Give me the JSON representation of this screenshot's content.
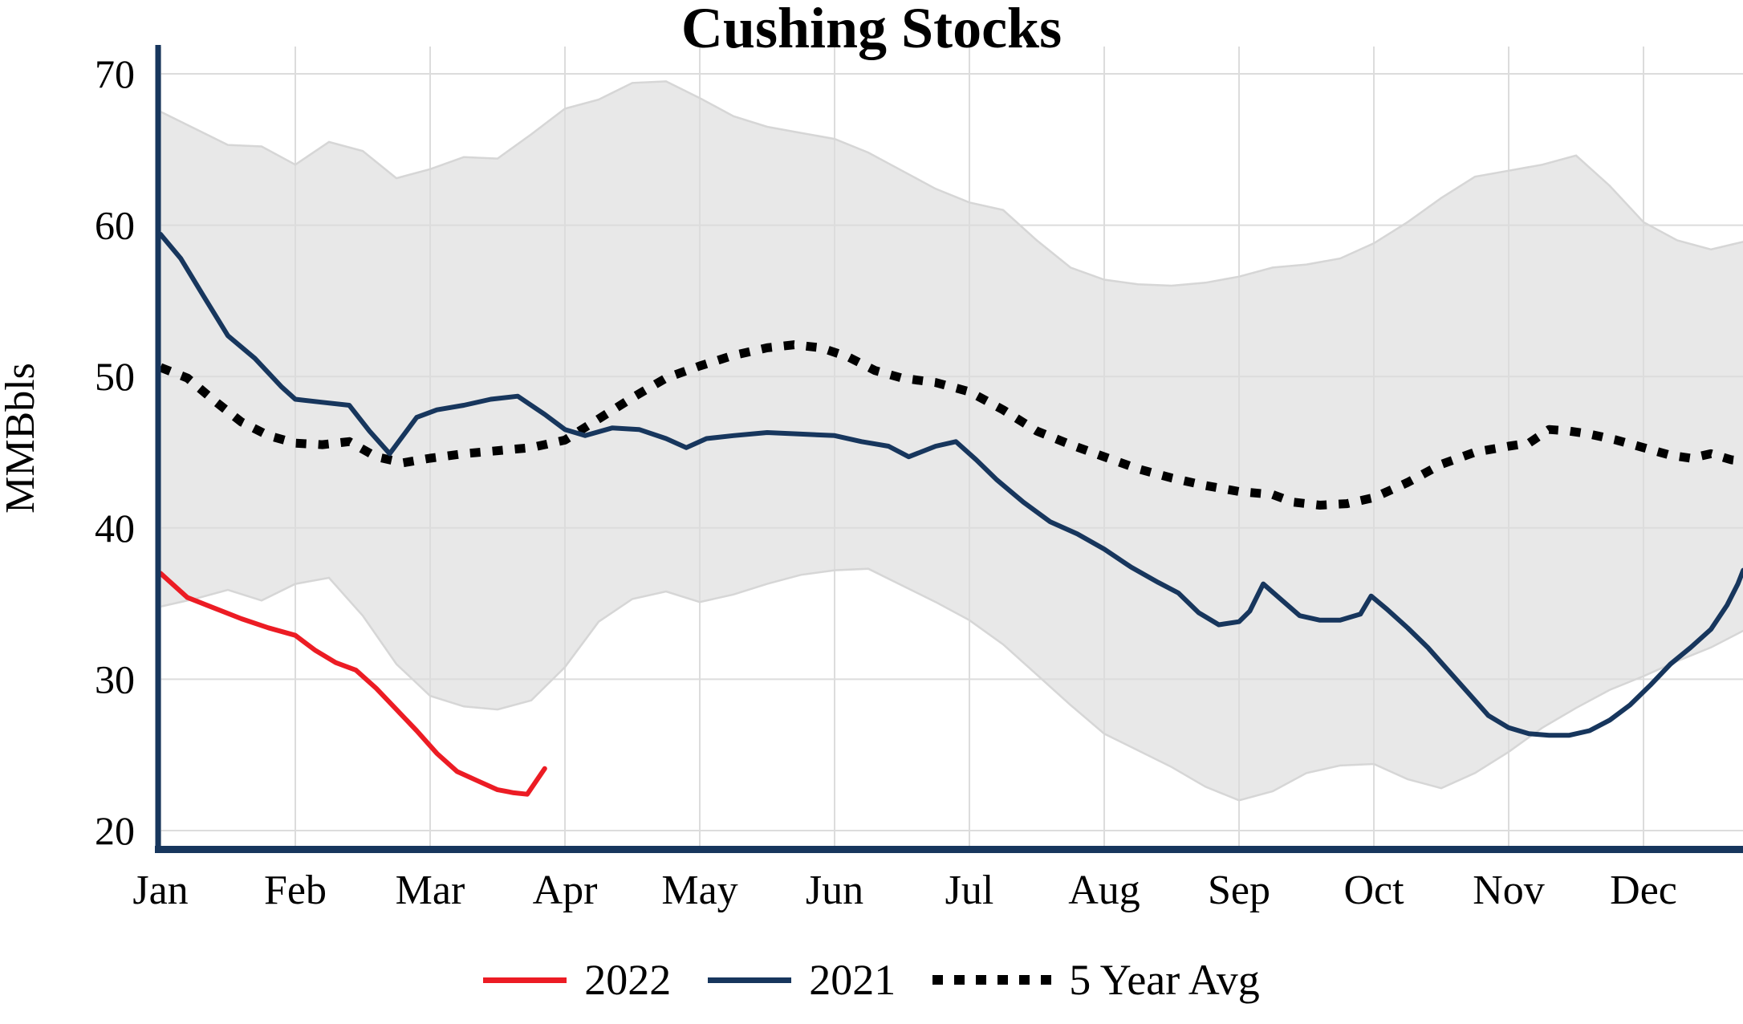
{
  "title": "Cushing Stocks",
  "colors": {
    "axis": "#17365d",
    "grid": "#dcdcdc",
    "background": "#ffffff",
    "text": "#000000"
  },
  "chart_data": {
    "type": "line",
    "title": "Cushing Stocks",
    "xlabel": "",
    "ylabel": "MMBbls",
    "ylim": [
      20,
      70
    ],
    "yticks": [
      20,
      30,
      40,
      50,
      60,
      70
    ],
    "xtick_labels": [
      "Jan",
      "Feb",
      "Mar",
      "Apr",
      "May",
      "Jun",
      "Jul",
      "Aug",
      "Sep",
      "Oct",
      "Nov",
      "Dec"
    ],
    "x_unit": "months, 0 = Jan",
    "grid": true,
    "legend_position": "bottom",
    "band": {
      "color": "#e8e8e8",
      "edge_color": "#d6d6d6",
      "points_x": [
        0,
        0.25,
        0.5,
        0.75,
        1,
        1.25,
        1.5,
        1.75,
        2,
        2.25,
        2.5,
        2.75,
        3,
        3.25,
        3.5,
        3.75,
        4,
        4.25,
        4.5,
        4.75,
        5,
        5.25,
        5.5,
        5.75,
        6,
        6.25,
        6.5,
        6.75,
        7,
        7.25,
        7.5,
        7.75,
        8,
        8.25,
        8.5,
        8.75,
        9,
        9.25,
        9.5,
        9.75,
        10,
        10.25,
        10.5,
        10.75,
        11,
        11.25,
        11.5,
        11.74
      ],
      "upper": [
        67.5,
        66.4,
        65.3,
        65.2,
        64.0,
        65.5,
        64.9,
        63.1,
        63.7,
        64.5,
        64.4,
        66.0,
        67.7,
        68.3,
        69.4,
        69.5,
        68.4,
        67.2,
        66.5,
        66.1,
        65.7,
        64.8,
        63.6,
        62.4,
        61.5,
        61.0,
        59.0,
        57.2,
        56.4,
        56.1,
        56.0,
        56.2,
        56.6,
        57.2,
        57.4,
        57.8,
        58.8,
        60.2,
        61.8,
        63.2,
        63.6,
        64.0,
        64.6,
        62.6,
        60.2,
        59.0,
        58.4,
        58.9
      ],
      "lower": [
        34.8,
        35.3,
        35.9,
        35.2,
        36.3,
        36.7,
        34.2,
        31.0,
        28.9,
        28.2,
        28.0,
        28.6,
        30.8,
        33.8,
        35.3,
        35.8,
        35.1,
        35.6,
        36.3,
        36.9,
        37.2,
        37.3,
        36.2,
        35.1,
        33.9,
        32.3,
        30.3,
        28.3,
        26.4,
        25.3,
        24.2,
        22.9,
        22.0,
        22.6,
        23.8,
        24.3,
        24.4,
        23.4,
        22.8,
        23.8,
        25.2,
        26.8,
        28.1,
        29.3,
        30.2,
        31.2,
        32.1,
        33.2
      ]
    },
    "series": [
      {
        "name": "2022",
        "color": "#ec1c24",
        "dash": "solid",
        "width": 6,
        "points": [
          [
            0,
            37.0
          ],
          [
            0.2,
            35.4
          ],
          [
            0.4,
            34.7
          ],
          [
            0.6,
            34.0
          ],
          [
            0.8,
            33.4
          ],
          [
            1,
            32.9
          ],
          [
            1.15,
            31.9
          ],
          [
            1.3,
            31.1
          ],
          [
            1.45,
            30.6
          ],
          [
            1.6,
            29.4
          ],
          [
            1.75,
            28.0
          ],
          [
            1.9,
            26.6
          ],
          [
            2.05,
            25.1
          ],
          [
            2.2,
            23.9
          ],
          [
            2.35,
            23.3
          ],
          [
            2.5,
            22.7
          ],
          [
            2.62,
            22.5
          ],
          [
            2.72,
            22.4
          ],
          [
            2.85,
            24.1
          ]
        ]
      },
      {
        "name": "2021",
        "color": "#17365d",
        "dash": "solid",
        "width": 6,
        "points": [
          [
            0,
            59.4
          ],
          [
            0.15,
            57.8
          ],
          [
            0.3,
            55.6
          ],
          [
            0.5,
            52.7
          ],
          [
            0.7,
            51.2
          ],
          [
            0.9,
            49.3
          ],
          [
            1,
            48.5
          ],
          [
            1.2,
            48.3
          ],
          [
            1.4,
            48.1
          ],
          [
            1.55,
            46.4
          ],
          [
            1.7,
            44.9
          ],
          [
            1.9,
            47.3
          ],
          [
            2.05,
            47.8
          ],
          [
            2.25,
            48.1
          ],
          [
            2.45,
            48.5
          ],
          [
            2.65,
            48.7
          ],
          [
            2.85,
            47.5
          ],
          [
            3,
            46.5
          ],
          [
            3.15,
            46.1
          ],
          [
            3.35,
            46.6
          ],
          [
            3.55,
            46.5
          ],
          [
            3.75,
            45.9
          ],
          [
            3.9,
            45.3
          ],
          [
            4.05,
            45.9
          ],
          [
            4.25,
            46.1
          ],
          [
            4.5,
            46.3
          ],
          [
            4.75,
            46.2
          ],
          [
            5,
            46.1
          ],
          [
            5.2,
            45.7
          ],
          [
            5.4,
            45.4
          ],
          [
            5.55,
            44.7
          ],
          [
            5.75,
            45.4
          ],
          [
            5.9,
            45.7
          ],
          [
            6.05,
            44.5
          ],
          [
            6.2,
            43.2
          ],
          [
            6.4,
            41.7
          ],
          [
            6.6,
            40.4
          ],
          [
            6.8,
            39.6
          ],
          [
            7,
            38.6
          ],
          [
            7.2,
            37.4
          ],
          [
            7.4,
            36.4
          ],
          [
            7.55,
            35.7
          ],
          [
            7.7,
            34.4
          ],
          [
            7.85,
            33.6
          ],
          [
            8,
            33.8
          ],
          [
            8.08,
            34.5
          ],
          [
            8.18,
            36.3
          ],
          [
            8.32,
            35.2
          ],
          [
            8.45,
            34.2
          ],
          [
            8.6,
            33.9
          ],
          [
            8.75,
            33.9
          ],
          [
            8.9,
            34.3
          ],
          [
            8.98,
            35.5
          ],
          [
            9.1,
            34.6
          ],
          [
            9.25,
            33.4
          ],
          [
            9.4,
            32.1
          ],
          [
            9.55,
            30.6
          ],
          [
            9.7,
            29.1
          ],
          [
            9.85,
            27.6
          ],
          [
            10,
            26.8
          ],
          [
            10.15,
            26.4
          ],
          [
            10.3,
            26.3
          ],
          [
            10.45,
            26.3
          ],
          [
            10.6,
            26.6
          ],
          [
            10.75,
            27.3
          ],
          [
            10.9,
            28.3
          ],
          [
            11.05,
            29.6
          ],
          [
            11.2,
            31.0
          ],
          [
            11.35,
            32.1
          ],
          [
            11.5,
            33.3
          ],
          [
            11.62,
            34.9
          ],
          [
            11.7,
            36.3
          ],
          [
            11.74,
            37.2
          ]
        ]
      },
      {
        "name": "5 Year Avg",
        "color": "#000000",
        "dash": "dotted",
        "width": 11,
        "points": [
          [
            0,
            50.6
          ],
          [
            0.2,
            49.9
          ],
          [
            0.4,
            48.4
          ],
          [
            0.6,
            47.0
          ],
          [
            0.8,
            46.1
          ],
          [
            1,
            45.6
          ],
          [
            1.2,
            45.5
          ],
          [
            1.4,
            45.7
          ],
          [
            1.6,
            44.7
          ],
          [
            1.8,
            44.3
          ],
          [
            2,
            44.6
          ],
          [
            2.25,
            44.9
          ],
          [
            2.5,
            45.1
          ],
          [
            2.75,
            45.3
          ],
          [
            3,
            45.8
          ],
          [
            3.25,
            47.2
          ],
          [
            3.5,
            48.6
          ],
          [
            3.75,
            49.9
          ],
          [
            4,
            50.7
          ],
          [
            4.25,
            51.4
          ],
          [
            4.5,
            51.9
          ],
          [
            4.7,
            52.1
          ],
          [
            4.9,
            51.9
          ],
          [
            5.1,
            51.3
          ],
          [
            5.3,
            50.4
          ],
          [
            5.5,
            49.9
          ],
          [
            5.75,
            49.6
          ],
          [
            6,
            49.0
          ],
          [
            6.25,
            47.8
          ],
          [
            6.5,
            46.4
          ],
          [
            6.75,
            45.5
          ],
          [
            7,
            44.7
          ],
          [
            7.25,
            43.9
          ],
          [
            7.5,
            43.3
          ],
          [
            7.75,
            42.8
          ],
          [
            8,
            42.4
          ],
          [
            8.25,
            42.2
          ],
          [
            8.4,
            41.7
          ],
          [
            8.6,
            41.5
          ],
          [
            8.8,
            41.6
          ],
          [
            9,
            42.0
          ],
          [
            9.25,
            43.0
          ],
          [
            9.5,
            44.2
          ],
          [
            9.75,
            45.0
          ],
          [
            10,
            45.4
          ],
          [
            10.15,
            45.6
          ],
          [
            10.3,
            46.5
          ],
          [
            10.45,
            46.4
          ],
          [
            10.6,
            46.2
          ],
          [
            10.8,
            45.8
          ],
          [
            11,
            45.3
          ],
          [
            11.2,
            44.8
          ],
          [
            11.35,
            44.6
          ],
          [
            11.5,
            44.9
          ],
          [
            11.65,
            44.5
          ],
          [
            11.74,
            44.4
          ]
        ]
      }
    ]
  }
}
